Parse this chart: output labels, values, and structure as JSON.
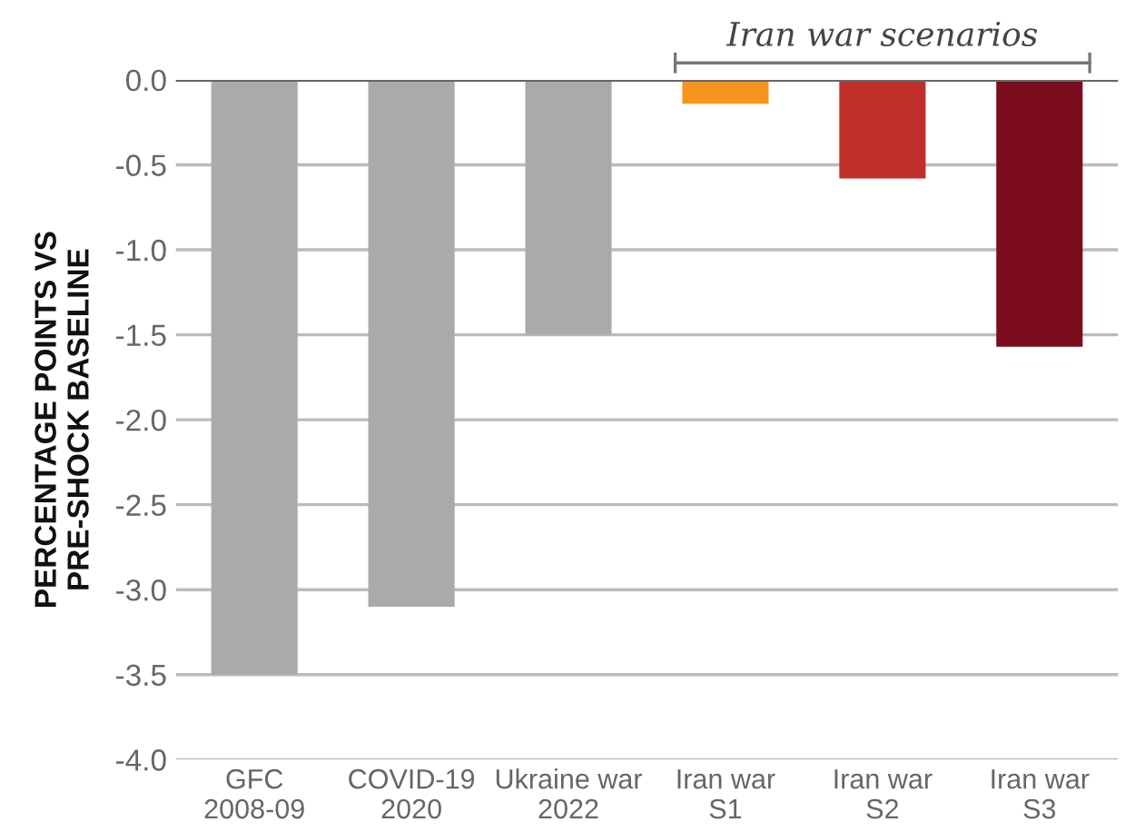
{
  "chart_data": {
    "type": "bar",
    "ylabel": "PERCENTAGE POINTS VS\nPRE-SHOCK BASELINE",
    "categories": [
      "GFC\n2008-09",
      "COVID-19\n2020",
      "Ukraine war\n2022",
      "Iran war\nS1",
      "Iran war\nS2",
      "Iran war\nS3"
    ],
    "values": [
      -3.5,
      -3.1,
      -1.5,
      -0.14,
      -0.58,
      -1.57
    ],
    "colors": [
      "#aaaaaa",
      "#aaaaaa",
      "#aaaaaa",
      "#f7941d",
      "#c0302a",
      "#7a0c1e"
    ],
    "ylim": [
      -4.0,
      0.0
    ],
    "yticks": [
      {
        "value": -4.0,
        "label": "-4.0"
      },
      {
        "value": -3.5,
        "label": "-3.5"
      },
      {
        "value": -3.0,
        "label": "-3.0"
      },
      {
        "value": -2.5,
        "label": "-2.5"
      },
      {
        "value": -2.0,
        "label": "-2.0"
      },
      {
        "value": -1.5,
        "label": "-1.5"
      },
      {
        "value": -1.0,
        "label": "-1.0"
      },
      {
        "value": -0.5,
        "label": "-0.5"
      },
      {
        "value": 0.0,
        "label": "0.0"
      }
    ],
    "grid": "y",
    "annotations": [
      "Iran war scenarios"
    ]
  }
}
